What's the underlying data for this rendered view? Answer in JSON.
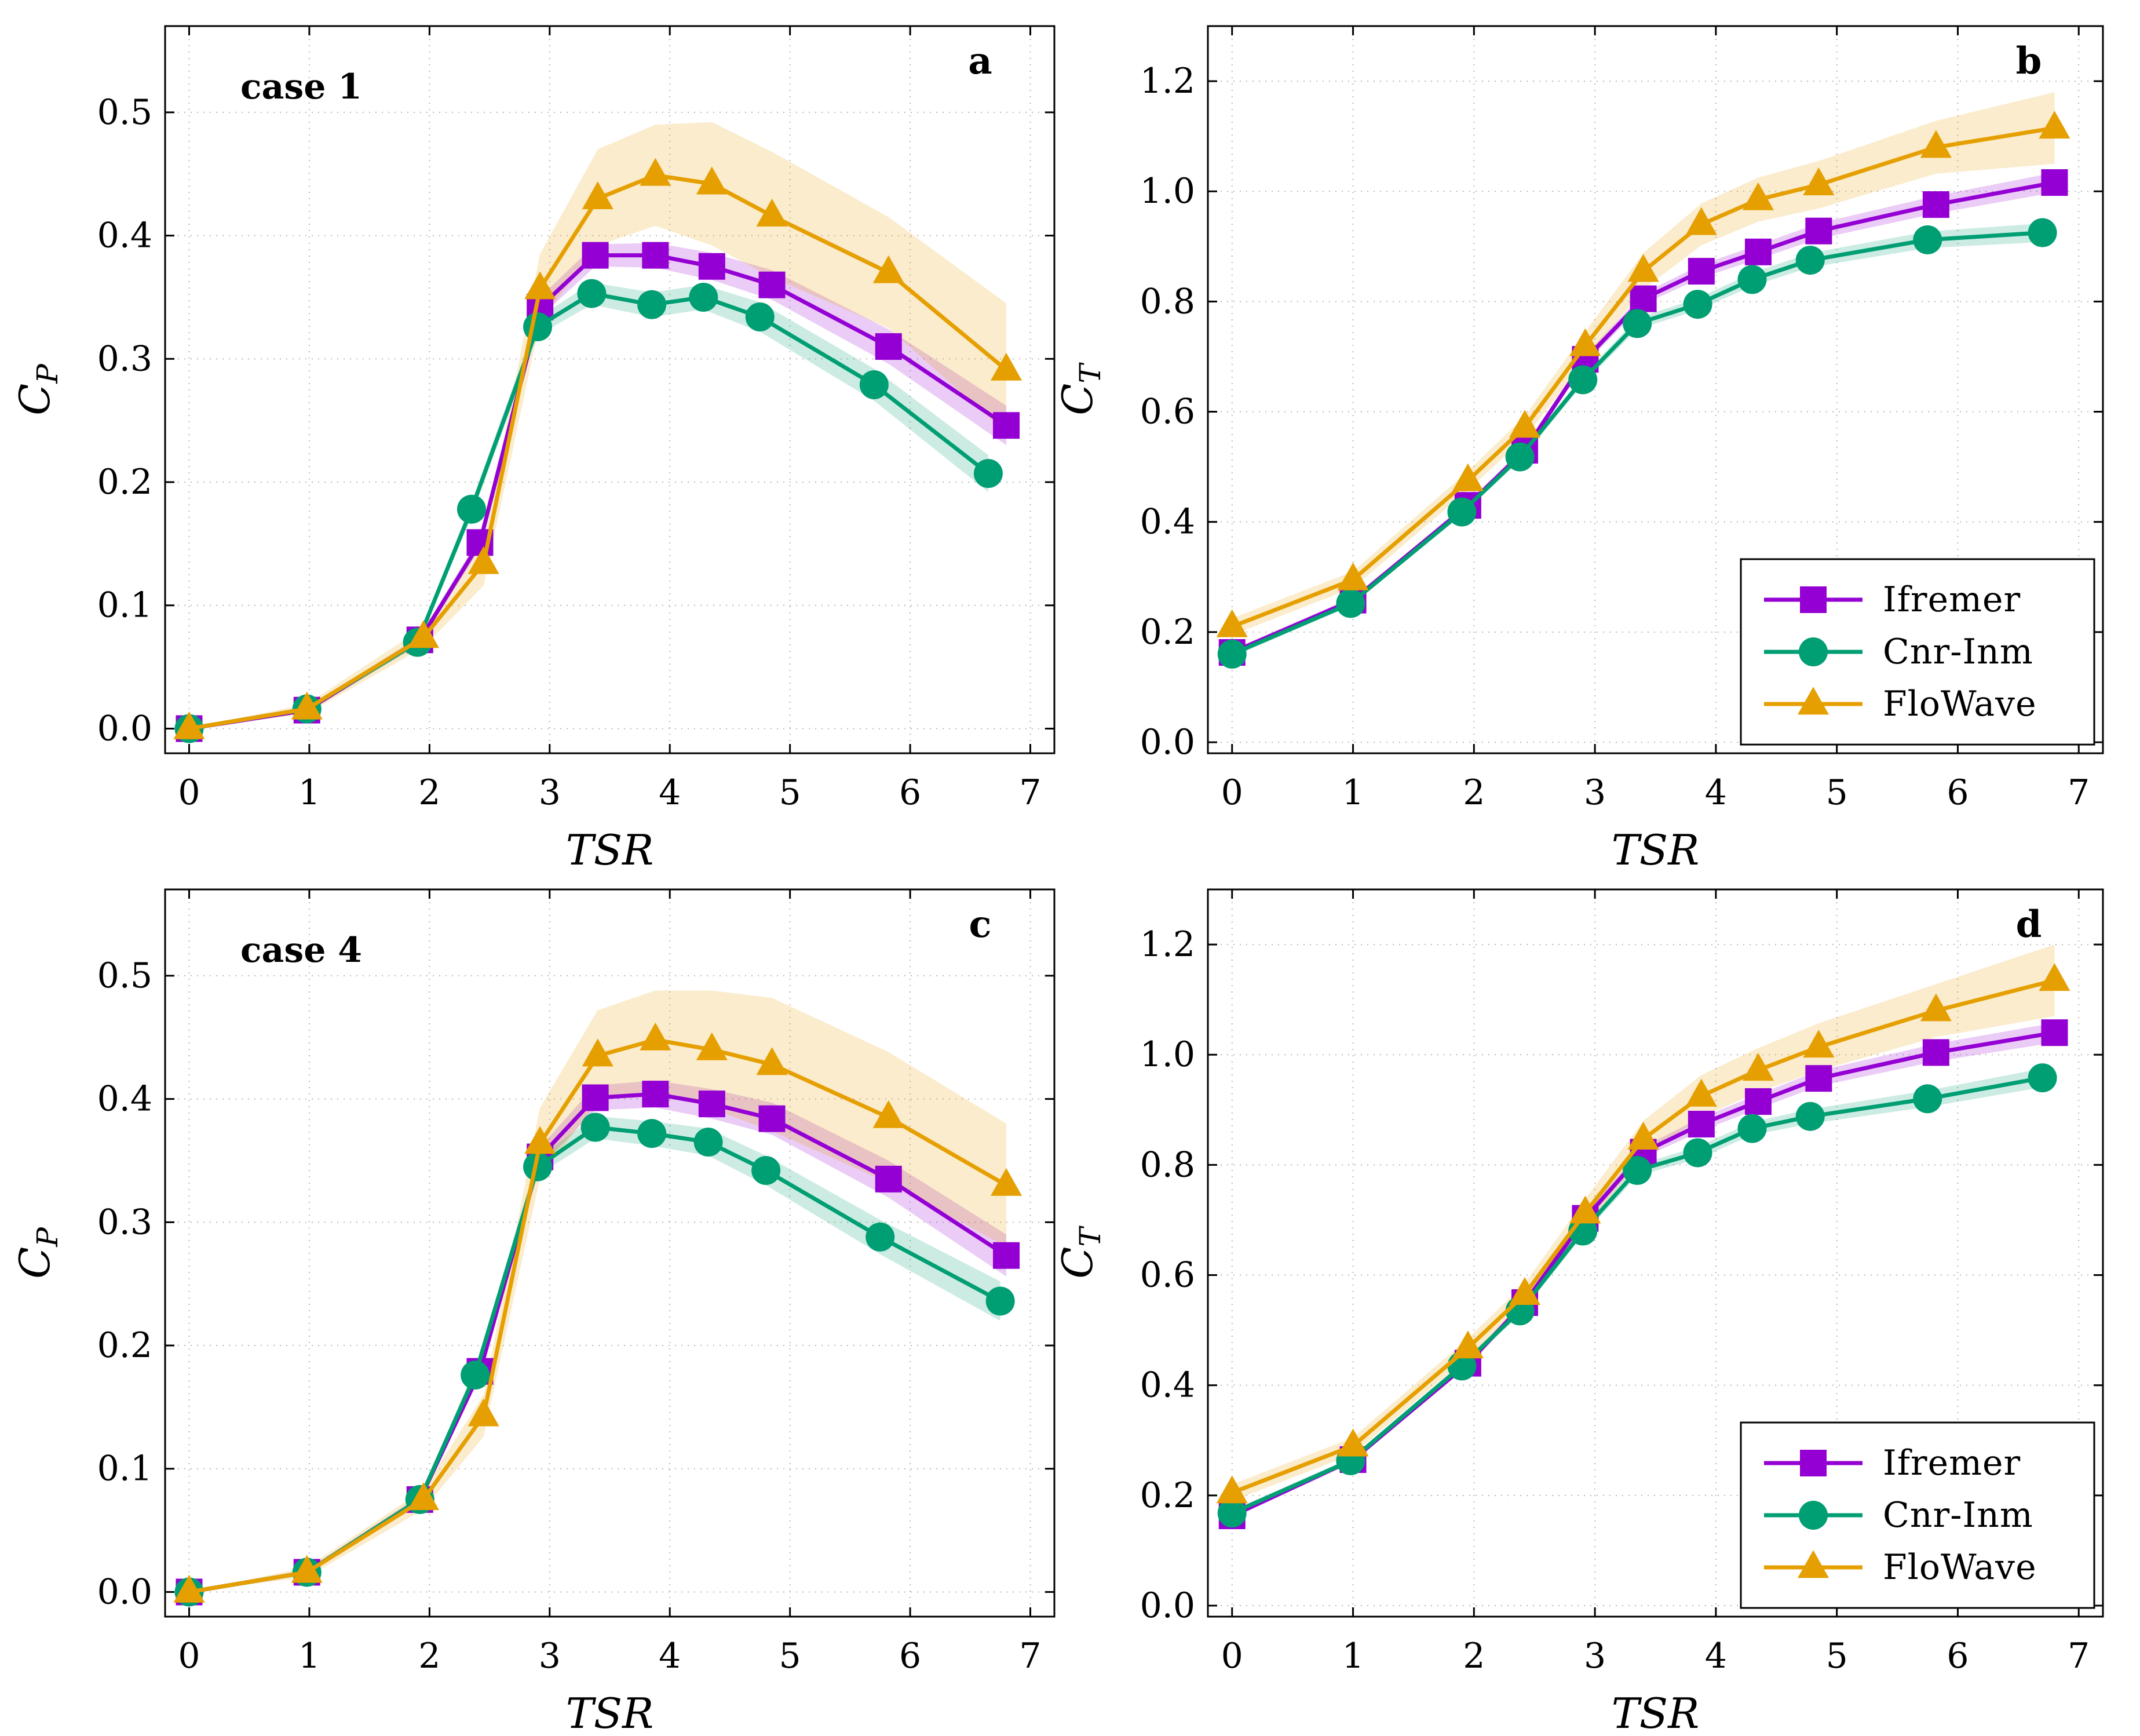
{
  "colors": {
    "ifremer": "#9400D3",
    "cnr": "#009E73",
    "flowave": "#E69F00"
  },
  "chart_data": [
    {
      "type": "line",
      "panel": "a",
      "annotation": "case 1",
      "xlabel_main": "TSR",
      "ylabel_main": "C",
      "ylabel_sub": "P",
      "xlim": [
        -0.2,
        7.2
      ],
      "ylim": [
        -0.02,
        0.57
      ],
      "xticks": [
        0,
        1,
        2,
        3,
        4,
        5,
        6,
        7
      ],
      "yticks": [
        0.0,
        0.1,
        0.2,
        0.3,
        0.4,
        0.5
      ],
      "ytick_decimals": 1,
      "grid": true,
      "legend": false,
      "series": [
        {
          "name": "Ifremer",
          "color": "#9400D3",
          "marker": "square",
          "x": [
            0,
            0.98,
            1.92,
            2.42,
            2.92,
            3.38,
            3.88,
            4.35,
            4.85,
            5.82,
            6.8
          ],
          "y": [
            0.0,
            0.015,
            0.072,
            0.151,
            0.342,
            0.384,
            0.384,
            0.375,
            0.36,
            0.31,
            0.246
          ],
          "band_upper": [
            0.0,
            0.017,
            0.075,
            0.156,
            0.35,
            0.393,
            0.394,
            0.386,
            0.372,
            0.324,
            0.262
          ],
          "band_lower": [
            0.0,
            0.013,
            0.069,
            0.146,
            0.334,
            0.375,
            0.374,
            0.364,
            0.348,
            0.296,
            0.23
          ]
        },
        {
          "name": "Cnr-Inm",
          "color": "#009E73",
          "marker": "circle",
          "x": [
            0,
            0.98,
            1.9,
            2.35,
            2.9,
            3.35,
            3.85,
            4.28,
            4.75,
            5.7,
            6.65
          ],
          "y": [
            0.0,
            0.016,
            0.07,
            0.178,
            0.326,
            0.353,
            0.344,
            0.35,
            0.334,
            0.279,
            0.207
          ],
          "band_upper": [
            0.0,
            0.018,
            0.073,
            0.184,
            0.333,
            0.362,
            0.354,
            0.36,
            0.346,
            0.292,
            0.222
          ],
          "band_lower": [
            0.0,
            0.014,
            0.067,
            0.172,
            0.319,
            0.344,
            0.334,
            0.34,
            0.322,
            0.266,
            0.192
          ]
        },
        {
          "name": "FloWave",
          "color": "#E69F00",
          "marker": "triangle",
          "x": [
            0,
            0.98,
            1.95,
            2.45,
            2.92,
            3.4,
            3.88,
            4.35,
            4.85,
            5.82,
            6.8
          ],
          "y": [
            0.0,
            0.016,
            0.074,
            0.134,
            0.357,
            0.43,
            0.449,
            0.442,
            0.416,
            0.37,
            0.291
          ],
          "band_upper": [
            0.0,
            0.02,
            0.082,
            0.152,
            0.385,
            0.47,
            0.49,
            0.492,
            0.468,
            0.415,
            0.345
          ],
          "band_lower": [
            0.0,
            0.012,
            0.066,
            0.116,
            0.33,
            0.392,
            0.408,
            0.392,
            0.366,
            0.325,
            0.24
          ]
        }
      ]
    },
    {
      "type": "line",
      "panel": "b",
      "annotation": "",
      "xlabel_main": "TSR",
      "ylabel_main": "C",
      "ylabel_sub": "T",
      "xlim": [
        -0.2,
        7.2
      ],
      "ylim": [
        -0.02,
        1.3
      ],
      "xticks": [
        0,
        1,
        2,
        3,
        4,
        5,
        6,
        7
      ],
      "yticks": [
        0.0,
        0.2,
        0.4,
        0.6,
        0.8,
        1.0,
        1.2
      ],
      "ytick_decimals": 1,
      "grid": true,
      "legend": true,
      "legend_position": "bottom-right",
      "series": [
        {
          "name": "Ifremer",
          "color": "#9400D3",
          "marker": "square",
          "x": [
            0,
            1.0,
            1.95,
            2.42,
            2.92,
            3.4,
            3.88,
            4.35,
            4.85,
            5.82,
            6.8
          ],
          "y": [
            0.163,
            0.258,
            0.43,
            0.53,
            0.695,
            0.805,
            0.855,
            0.89,
            0.928,
            0.976,
            1.016
          ],
          "band_upper": [
            0.168,
            0.263,
            0.436,
            0.537,
            0.703,
            0.815,
            0.867,
            0.903,
            0.942,
            0.992,
            1.034
          ],
          "band_lower": [
            0.158,
            0.253,
            0.424,
            0.523,
            0.687,
            0.795,
            0.843,
            0.877,
            0.914,
            0.96,
            0.998
          ]
        },
        {
          "name": "Cnr-Inm",
          "color": "#009E73",
          "marker": "circle",
          "x": [
            0,
            0.98,
            1.9,
            2.38,
            2.9,
            3.35,
            3.85,
            4.3,
            4.78,
            5.75,
            6.7
          ],
          "y": [
            0.16,
            0.252,
            0.418,
            0.518,
            0.658,
            0.76,
            0.795,
            0.84,
            0.875,
            0.912,
            0.925
          ],
          "band_upper": [
            0.165,
            0.257,
            0.424,
            0.525,
            0.666,
            0.77,
            0.806,
            0.852,
            0.888,
            0.927,
            0.942
          ],
          "band_lower": [
            0.155,
            0.247,
            0.412,
            0.511,
            0.65,
            0.75,
            0.784,
            0.828,
            0.862,
            0.897,
            0.908
          ]
        },
        {
          "name": "FloWave",
          "color": "#E69F00",
          "marker": "triangle",
          "x": [
            0,
            1.0,
            1.95,
            2.42,
            2.92,
            3.4,
            3.88,
            4.35,
            4.85,
            5.82,
            6.8
          ],
          "y": [
            0.21,
            0.295,
            0.475,
            0.572,
            0.72,
            0.855,
            0.94,
            0.985,
            1.012,
            1.08,
            1.115
          ],
          "band_upper": [
            0.225,
            0.31,
            0.492,
            0.592,
            0.745,
            0.888,
            0.978,
            1.025,
            1.055,
            1.128,
            1.18
          ],
          "band_lower": [
            0.195,
            0.28,
            0.458,
            0.552,
            0.695,
            0.822,
            0.902,
            0.945,
            0.969,
            1.032,
            1.05
          ]
        }
      ]
    },
    {
      "type": "line",
      "panel": "c",
      "annotation": "case 4",
      "xlabel_main": "TSR",
      "ylabel_main": "C",
      "ylabel_sub": "P",
      "xlim": [
        -0.2,
        7.2
      ],
      "ylim": [
        -0.02,
        0.57
      ],
      "xticks": [
        0,
        1,
        2,
        3,
        4,
        5,
        6,
        7
      ],
      "yticks": [
        0.0,
        0.1,
        0.2,
        0.3,
        0.4,
        0.5
      ],
      "ytick_decimals": 1,
      "grid": true,
      "legend": false,
      "series": [
        {
          "name": "Ifremer",
          "color": "#9400D3",
          "marker": "square",
          "x": [
            0,
            0.98,
            1.92,
            2.42,
            2.92,
            3.38,
            3.88,
            4.35,
            4.85,
            5.82,
            6.8
          ],
          "y": [
            0.0,
            0.016,
            0.075,
            0.179,
            0.353,
            0.401,
            0.404,
            0.396,
            0.384,
            0.335,
            0.273
          ],
          "band_upper": [
            0.0,
            0.018,
            0.078,
            0.184,
            0.361,
            0.411,
            0.415,
            0.408,
            0.397,
            0.35,
            0.29
          ],
          "band_lower": [
            0.0,
            0.014,
            0.072,
            0.174,
            0.345,
            0.391,
            0.393,
            0.384,
            0.371,
            0.32,
            0.256
          ]
        },
        {
          "name": "Cnr-Inm",
          "color": "#009E73",
          "marker": "circle",
          "x": [
            0,
            0.98,
            1.92,
            2.38,
            2.9,
            3.38,
            3.85,
            4.32,
            4.8,
            5.75,
            6.75
          ],
          "y": [
            0.0,
            0.016,
            0.075,
            0.176,
            0.345,
            0.377,
            0.372,
            0.365,
            0.342,
            0.288,
            0.236
          ],
          "band_upper": [
            0.0,
            0.018,
            0.078,
            0.182,
            0.352,
            0.386,
            0.382,
            0.376,
            0.354,
            0.302,
            0.252
          ],
          "band_lower": [
            0.0,
            0.014,
            0.072,
            0.17,
            0.338,
            0.368,
            0.362,
            0.354,
            0.33,
            0.274,
            0.22
          ]
        },
        {
          "name": "FloWave",
          "color": "#E69F00",
          "marker": "triangle",
          "x": [
            0,
            0.98,
            1.95,
            2.45,
            2.92,
            3.4,
            3.88,
            4.35,
            4.85,
            5.82,
            6.8
          ],
          "y": [
            0.0,
            0.016,
            0.075,
            0.143,
            0.364,
            0.435,
            0.448,
            0.44,
            0.428,
            0.385,
            0.33
          ],
          "band_upper": [
            0.0,
            0.02,
            0.083,
            0.16,
            0.393,
            0.472,
            0.488,
            0.488,
            0.482,
            0.438,
            0.38
          ],
          "band_lower": [
            0.0,
            0.012,
            0.067,
            0.126,
            0.336,
            0.398,
            0.408,
            0.392,
            0.374,
            0.332,
            0.28
          ]
        }
      ]
    },
    {
      "type": "line",
      "panel": "d",
      "annotation": "",
      "xlabel_main": "TSR",
      "ylabel_main": "C",
      "ylabel_sub": "T",
      "xlim": [
        -0.2,
        7.2
      ],
      "ylim": [
        -0.02,
        1.3
      ],
      "xticks": [
        0,
        1,
        2,
        3,
        4,
        5,
        6,
        7
      ],
      "yticks": [
        0.0,
        0.2,
        0.4,
        0.6,
        0.8,
        1.0,
        1.2
      ],
      "ytick_decimals": 1,
      "grid": true,
      "legend": true,
      "legend_position": "bottom-right",
      "series": [
        {
          "name": "Ifremer",
          "color": "#9400D3",
          "marker": "square",
          "x": [
            0,
            1.0,
            1.95,
            2.42,
            2.92,
            3.4,
            3.88,
            4.35,
            4.85,
            5.82,
            6.8
          ],
          "y": [
            0.163,
            0.265,
            0.44,
            0.55,
            0.703,
            0.823,
            0.874,
            0.915,
            0.957,
            1.004,
            1.04
          ],
          "band_upper": [
            0.168,
            0.27,
            0.446,
            0.557,
            0.711,
            0.833,
            0.886,
            0.928,
            0.971,
            1.02,
            1.058
          ],
          "band_lower": [
            0.158,
            0.26,
            0.434,
            0.543,
            0.695,
            0.813,
            0.862,
            0.902,
            0.943,
            0.988,
            1.022
          ]
        },
        {
          "name": "Cnr-Inm",
          "color": "#009E73",
          "marker": "circle",
          "x": [
            0,
            0.98,
            1.9,
            2.38,
            2.9,
            3.35,
            3.85,
            4.3,
            4.78,
            5.75,
            6.7
          ],
          "y": [
            0.168,
            0.263,
            0.435,
            0.535,
            0.68,
            0.79,
            0.822,
            0.866,
            0.888,
            0.92,
            0.958
          ],
          "band_upper": [
            0.173,
            0.268,
            0.441,
            0.542,
            0.688,
            0.8,
            0.833,
            0.878,
            0.901,
            0.935,
            0.975
          ],
          "band_lower": [
            0.163,
            0.258,
            0.429,
            0.528,
            0.672,
            0.78,
            0.811,
            0.854,
            0.875,
            0.905,
            0.941
          ]
        },
        {
          "name": "FloWave",
          "color": "#E69F00",
          "marker": "triangle",
          "x": [
            0,
            1.0,
            1.95,
            2.42,
            2.92,
            3.4,
            3.88,
            4.35,
            4.85,
            5.82,
            6.8
          ],
          "y": [
            0.205,
            0.29,
            0.468,
            0.565,
            0.713,
            0.847,
            0.925,
            0.972,
            1.014,
            1.08,
            1.135
          ],
          "band_upper": [
            0.22,
            0.305,
            0.485,
            0.585,
            0.738,
            0.88,
            0.963,
            1.012,
            1.057,
            1.128,
            1.2
          ],
          "band_lower": [
            0.19,
            0.275,
            0.451,
            0.545,
            0.688,
            0.814,
            0.887,
            0.932,
            0.971,
            1.032,
            1.07
          ]
        }
      ]
    }
  ]
}
